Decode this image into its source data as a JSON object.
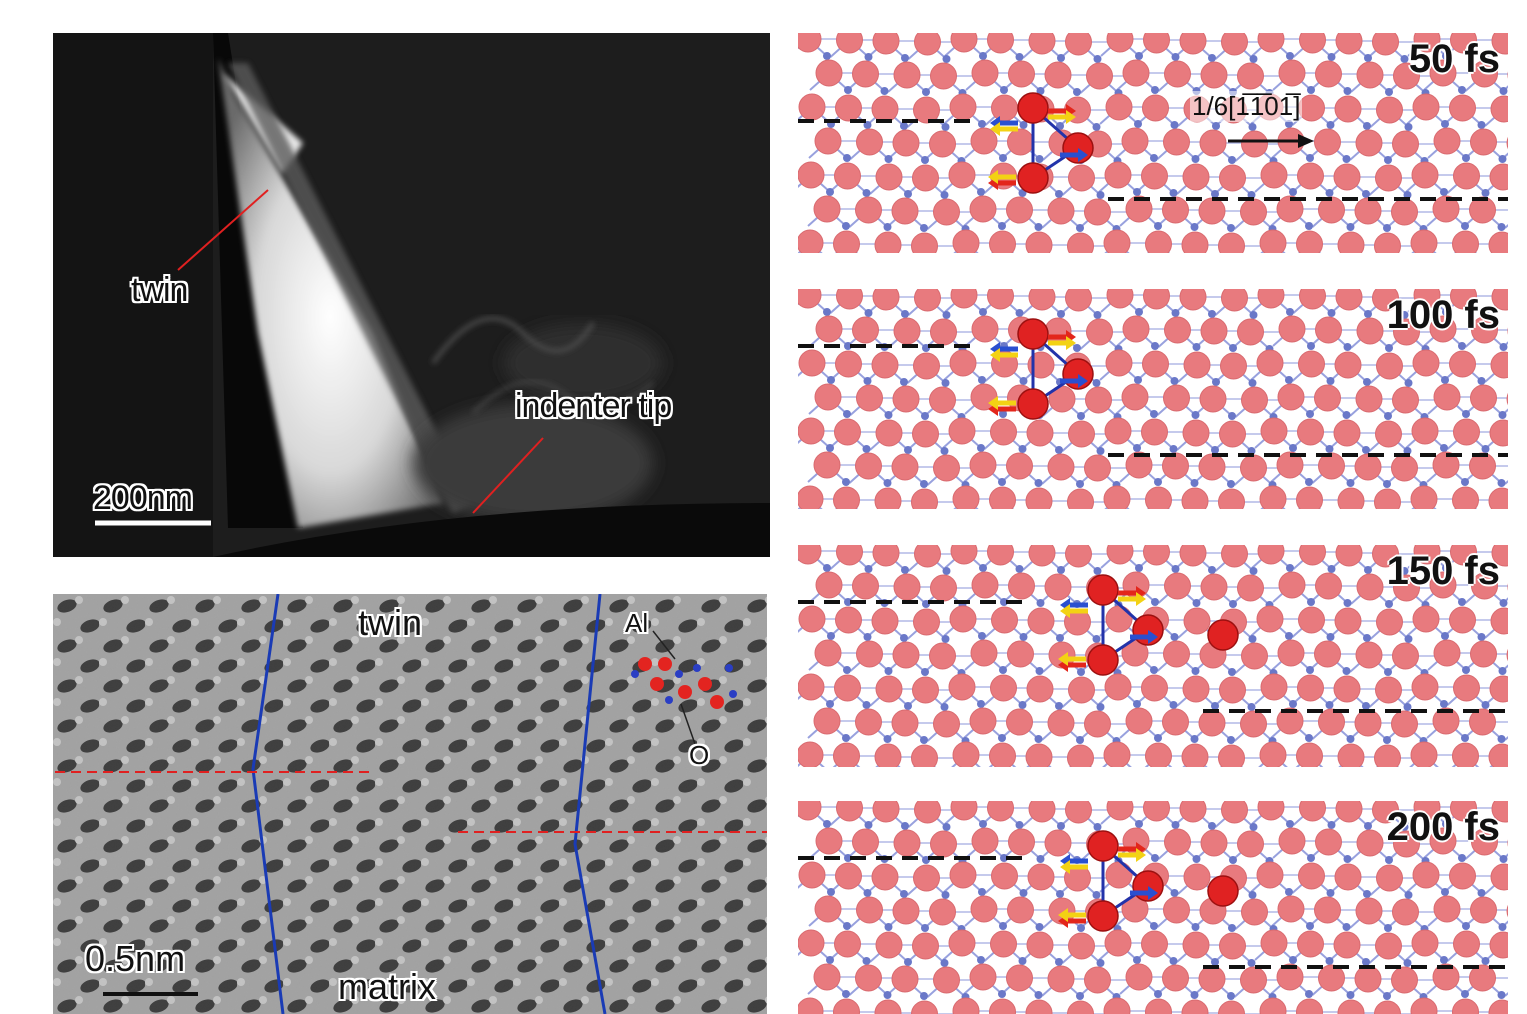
{
  "tem_panel": {
    "twin_label": "twin",
    "tip_label": "indenter tip",
    "scale_label": "200nm"
  },
  "hrtem_panel": {
    "twin_label": "twin",
    "matrix_label": "matrix",
    "scale_label": "0.5nm",
    "al_label": "Al",
    "o_label": "O"
  },
  "simulation": {
    "direction_label": "1/6[1̅1̅01̅]",
    "direction_label_plain": "1/6[1101]",
    "frames": [
      {
        "time": "50 fs"
      },
      {
        "time": "100 fs"
      },
      {
        "time": "150 fs"
      },
      {
        "time": "200 fs"
      }
    ]
  },
  "colors": {
    "oxygen": "#e87a7e",
    "aluminum": "#6a78c8",
    "bond": "#7f8ad6",
    "annotation_line": "#e02020",
    "boundary_line": "#1a3bb5",
    "arrow_yellow": "#f3d214",
    "arrow_red": "#e3261b",
    "arrow_blue": "#2a4fd0"
  }
}
